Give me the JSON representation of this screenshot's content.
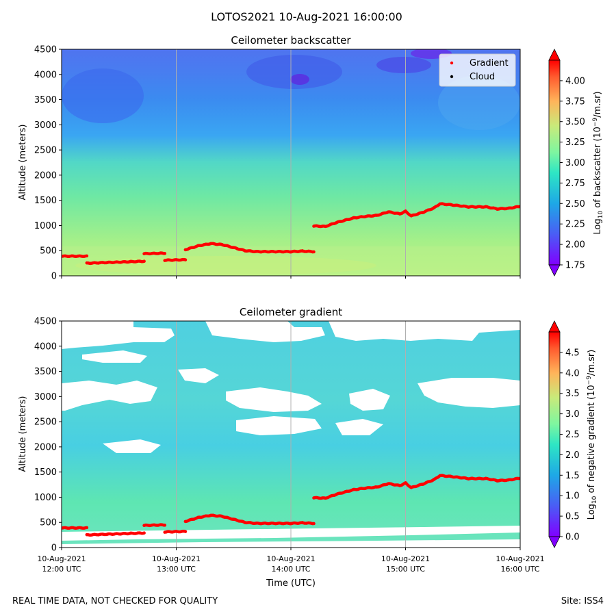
{
  "figure": {
    "suptitle": "LOTOS2021 10-Aug-2021 16:00:00",
    "footer_left": "REAL TIME DATA, NOT CHECKED FOR QUALITY",
    "footer_right": "Site: ISS4"
  },
  "chart_data": [
    {
      "type": "heatmap",
      "title": "Ceilometer backscatter",
      "ylabel": "Altitude (meters)",
      "xlabel": "",
      "ylim": [
        0,
        4500
      ],
      "yticks": [
        "0",
        "500",
        "1000",
        "1500",
        "2000",
        "2500",
        "3000",
        "3500",
        "4000",
        "4500"
      ],
      "xticks": [],
      "grid": "vertical lines at each hour",
      "legend": {
        "placement": "top-right",
        "entries": [
          {
            "label": "Gradient",
            "color": "#ff0000"
          },
          {
            "label": "Cloud",
            "color": "#000000"
          }
        ]
      },
      "colorbar": {
        "label_prefix": "Log",
        "label_sub": "10",
        "label_mid": " of backscatter (10",
        "label_sup": "−9",
        "label_suffix": "/m.sr)",
        "min": 1.75,
        "max": 4.25,
        "ticks": [
          "1.75",
          "2.00",
          "2.25",
          "2.50",
          "2.75",
          "3.00",
          "3.25",
          "3.50",
          "3.75",
          "4.00"
        ],
        "tick_values": [
          1.75,
          2.0,
          2.25,
          2.5,
          2.75,
          3.0,
          3.25,
          3.5,
          3.75,
          4.0
        ]
      }
    },
    {
      "type": "heatmap",
      "title": "Ceilometer gradient",
      "ylabel": "Altitude (meters)",
      "xlabel": "Time (UTC)",
      "ylim": [
        0,
        4500
      ],
      "yticks": [
        "0",
        "500",
        "1000",
        "1500",
        "2000",
        "2500",
        "3000",
        "3500",
        "4000",
        "4500"
      ],
      "xticks": [
        {
          "line1": "10-Aug-2021",
          "line2": "12:00 UTC"
        },
        {
          "line1": "10-Aug-2021",
          "line2": "13:00 UTC"
        },
        {
          "line1": "10-Aug-2021",
          "line2": "14:00 UTC"
        },
        {
          "line1": "10-Aug-2021",
          "line2": "15:00 UTC"
        },
        {
          "line1": "10-Aug-2021",
          "line2": "16:00 UTC"
        }
      ],
      "grid": "vertical lines at each hour",
      "colorbar": {
        "label_prefix": "Log",
        "label_sub": "10",
        "label_mid": " of negative gradient (10",
        "label_sup": "−9",
        "label_suffix": "/m.sr)",
        "min": 0.0,
        "max": 5.0,
        "ticks": [
          "0.0",
          "0.5",
          "1.0",
          "1.5",
          "2.0",
          "2.5",
          "3.0",
          "3.5",
          "4.0",
          "4.5"
        ],
        "tick_values": [
          0.0,
          0.5,
          1.0,
          1.5,
          2.0,
          2.5,
          3.0,
          3.5,
          4.0,
          4.5
        ]
      }
    }
  ],
  "gradient_series": {
    "name": "Gradient",
    "time_range_hours": [
      12,
      16
    ],
    "points": [
      [
        12.0,
        390
      ],
      [
        12.22,
        390
      ],
      [
        12.22,
        250
      ],
      [
        12.4,
        265
      ],
      [
        12.6,
        280
      ],
      [
        12.72,
        290
      ],
      [
        12.72,
        440
      ],
      [
        12.9,
        450
      ],
      [
        12.9,
        310
      ],
      [
        13.08,
        320
      ],
      [
        13.08,
        520
      ],
      [
        13.2,
        600
      ],
      [
        13.3,
        640
      ],
      [
        13.4,
        620
      ],
      [
        13.5,
        560
      ],
      [
        13.6,
        500
      ],
      [
        13.7,
        480
      ],
      [
        13.9,
        480
      ],
      [
        14.0,
        480
      ],
      [
        14.1,
        490
      ],
      [
        14.2,
        480
      ],
      [
        14.2,
        990
      ],
      [
        14.3,
        980
      ],
      [
        14.4,
        1060
      ],
      [
        14.55,
        1150
      ],
      [
        14.65,
        1180
      ],
      [
        14.75,
        1200
      ],
      [
        14.85,
        1270
      ],
      [
        14.95,
        1230
      ],
      [
        15.0,
        1280
      ],
      [
        15.05,
        1190
      ],
      [
        15.15,
        1260
      ],
      [
        15.25,
        1350
      ],
      [
        15.3,
        1430
      ],
      [
        15.4,
        1410
      ],
      [
        15.55,
        1370
      ],
      [
        15.7,
        1370
      ],
      [
        15.8,
        1330
      ],
      [
        15.9,
        1340
      ],
      [
        16.0,
        1380
      ]
    ]
  }
}
